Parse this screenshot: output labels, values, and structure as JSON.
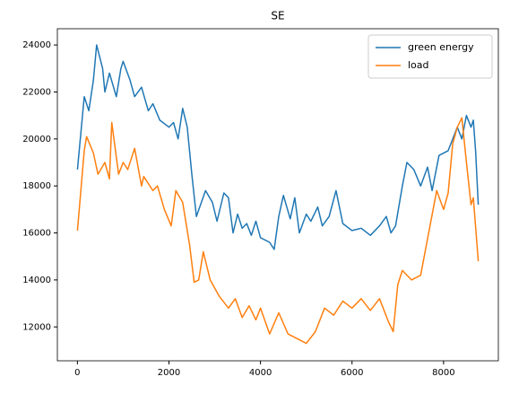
{
  "chart_data": {
    "type": "line",
    "title": "SE",
    "xlim": [
      -438,
      9197
    ],
    "xticks": [
      0,
      2000,
      4000,
      6000,
      8000
    ],
    "ylim": [
      10558,
      24692
    ],
    "yticks": [
      12000,
      14000,
      16000,
      18000,
      20000,
      22000,
      24000
    ],
    "legend": "upper right",
    "series": [
      {
        "name": "green energy",
        "color": "#1f77b4",
        "x": [
          0,
          150,
          250,
          350,
          420,
          550,
          600,
          700,
          850,
          950,
          1000,
          1150,
          1250,
          1400,
          1550,
          1650,
          1800,
          2000,
          2100,
          2200,
          2300,
          2400,
          2500,
          2600,
          2800,
          2950,
          3050,
          3200,
          3300,
          3400,
          3500,
          3600,
          3700,
          3800,
          3900,
          4000,
          4200,
          4300,
          4400,
          4500,
          4650,
          4750,
          4850,
          5000,
          5100,
          5250,
          5350,
          5500,
          5650,
          5800,
          6000,
          6200,
          6400,
          6600,
          6750,
          6850,
          6950,
          7100,
          7200,
          7350,
          7500,
          7650,
          7750,
          7900,
          8100,
          8300,
          8400,
          8500,
          8600,
          8650,
          8700,
          8759
        ],
        "values": [
          18700,
          21800,
          21200,
          22500,
          24000,
          23000,
          22000,
          22800,
          21800,
          23000,
          23300,
          22500,
          21800,
          22200,
          21200,
          21500,
          20800,
          20500,
          20700,
          20000,
          21300,
          20500,
          18500,
          16700,
          17800,
          17300,
          16500,
          17700,
          17500,
          16000,
          16800,
          16200,
          16400,
          15900,
          16500,
          15800,
          15600,
          15300,
          16700,
          17600,
          16600,
          17500,
          16000,
          16800,
          16500,
          17100,
          16300,
          16700,
          17800,
          16400,
          16100,
          16200,
          15900,
          16300,
          16700,
          16000,
          16300,
          18000,
          19000,
          18700,
          18000,
          18800,
          17800,
          19300,
          19500,
          20500,
          20000,
          21000,
          20500,
          20800,
          19500,
          17200
        ]
      },
      {
        "name": "load",
        "color": "#ff7f0e",
        "x": [
          0,
          150,
          200,
          350,
          450,
          600,
          700,
          750,
          900,
          1000,
          1100,
          1250,
          1400,
          1450,
          1650,
          1750,
          1900,
          2050,
          2150,
          2300,
          2450,
          2550,
          2650,
          2750,
          2900,
          3100,
          3300,
          3450,
          3600,
          3750,
          3900,
          4000,
          4200,
          4400,
          4600,
          4800,
          5000,
          5200,
          5400,
          5600,
          5800,
          6000,
          6200,
          6400,
          6600,
          6800,
          6900,
          7000,
          7100,
          7300,
          7500,
          7850,
          8000,
          8100,
          8200,
          8300,
          8400,
          8500,
          8600,
          8650,
          8759
        ],
        "values": [
          16100,
          19500,
          20100,
          19400,
          18500,
          19000,
          18300,
          20700,
          18500,
          19000,
          18700,
          19600,
          18000,
          18400,
          17800,
          18000,
          17000,
          16300,
          17800,
          17300,
          15500,
          13900,
          14000,
          15200,
          14000,
          13300,
          12800,
          13200,
          12400,
          12900,
          12300,
          12800,
          11700,
          12600,
          11700,
          11500,
          11300,
          11800,
          12800,
          12500,
          13100,
          12800,
          13200,
          12700,
          13200,
          12200,
          11800,
          13800,
          14400,
          14000,
          14200,
          17800,
          17000,
          17700,
          19800,
          20500,
          20900,
          19000,
          17200,
          17500,
          14800
        ]
      }
    ]
  }
}
